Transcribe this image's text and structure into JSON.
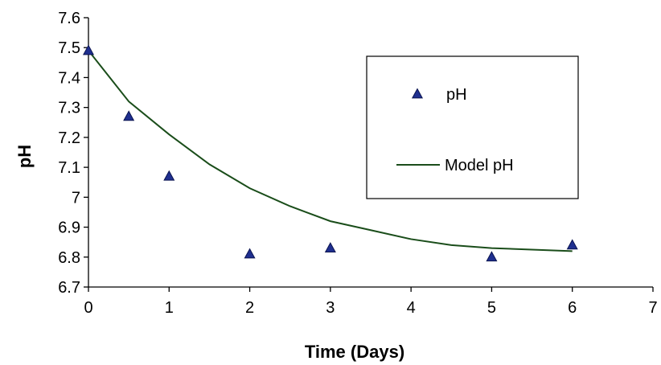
{
  "chart_data": {
    "type": "scatter",
    "title": "",
    "xlabel": "Time (Days)",
    "ylabel": "pH",
    "xlim": [
      0,
      7
    ],
    "ylim": [
      6.7,
      7.6
    ],
    "x_ticks": [
      "0",
      "1",
      "2",
      "3",
      "4",
      "5",
      "6",
      "7"
    ],
    "y_ticks": [
      "6.7",
      "6.8",
      "6.9",
      "7",
      "7.1",
      "7.2",
      "7.3",
      "7.4",
      "7.5",
      "7.6"
    ],
    "grid": false,
    "legend_position": "top-right",
    "series": [
      {
        "name": "pH",
        "type": "scatter",
        "marker": "triangle",
        "color": "#1f2f8f",
        "points": [
          {
            "x": 0,
            "y": 7.49
          },
          {
            "x": 0.5,
            "y": 7.27
          },
          {
            "x": 1,
            "y": 7.07
          },
          {
            "x": 2,
            "y": 6.81
          },
          {
            "x": 3,
            "y": 6.83
          },
          {
            "x": 5,
            "y": 6.8
          },
          {
            "x": 6,
            "y": 6.84
          }
        ]
      },
      {
        "name": "Model pH",
        "type": "line",
        "color": "#1a4d1a",
        "points": [
          {
            "x": 0,
            "y": 7.49
          },
          {
            "x": 0.5,
            "y": 7.32
          },
          {
            "x": 1,
            "y": 7.21
          },
          {
            "x": 1.5,
            "y": 7.11
          },
          {
            "x": 2,
            "y": 7.03
          },
          {
            "x": 2.5,
            "y": 6.97
          },
          {
            "x": 3,
            "y": 6.92
          },
          {
            "x": 3.5,
            "y": 6.89
          },
          {
            "x": 4,
            "y": 6.86
          },
          {
            "x": 4.5,
            "y": 6.84
          },
          {
            "x": 5,
            "y": 6.83
          },
          {
            "x": 5.5,
            "y": 6.825
          },
          {
            "x": 6,
            "y": 6.82
          }
        ]
      }
    ]
  }
}
